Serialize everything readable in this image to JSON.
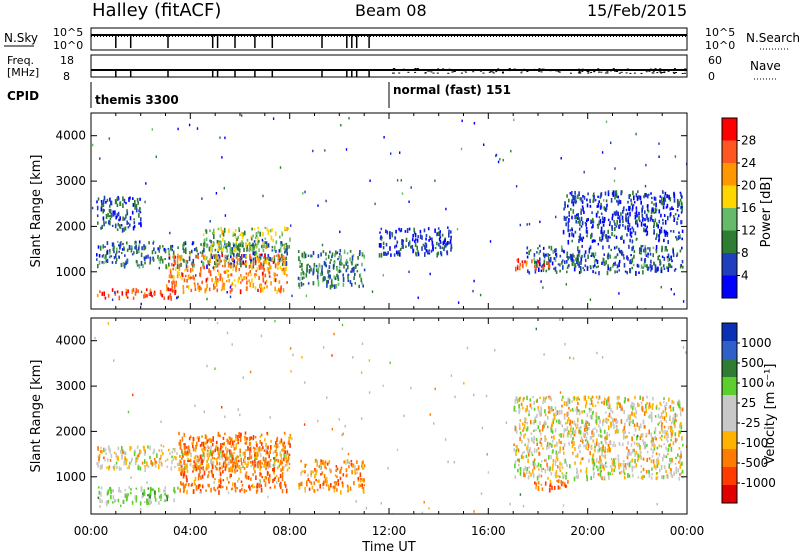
{
  "header": {
    "station": "Halley (fitACF)",
    "beam": "Beam 08",
    "date": "15/Feb/2015"
  },
  "summary": {
    "nsky_label": "N.Sky",
    "nsearch_label": "N.Search",
    "freq_label_1": "Freq.",
    "freq_label_2": "[MHz]",
    "nave_label": "Nave",
    "cpid_label": "CPID",
    "left_ticks_top": [
      "10^5",
      "10^0"
    ],
    "right_ticks_top": [
      "10^5",
      "10^0"
    ],
    "left_ticks_freq": [
      "18",
      "8"
    ],
    "right_ticks_nave": [
      "60",
      "0"
    ],
    "cpid_segments": [
      {
        "label": "themis 3300",
        "start_hour": 0
      },
      {
        "label": "normal (fast) 151",
        "start_hour": 12
      }
    ],
    "dips_hours": [
      1.0,
      1.6,
      3.1,
      4.9,
      5.1,
      5.8,
      6.6,
      7.3,
      9.3,
      10.3,
      10.5,
      10.7,
      11.2
    ]
  },
  "colors": {
    "power_scale": [
      "#0000ff",
      "#1f3fbf",
      "#2e7d32",
      "#66bb6a",
      "#ffd600",
      "#ff9800",
      "#ff5722",
      "#ff0000"
    ],
    "velocity_scale": [
      "#0b2fb5",
      "#2f5fc9",
      "#2e7d32",
      "#5ccf2e",
      "#c8c8c8",
      "#c8c8c8",
      "#ffb300",
      "#ff7a00",
      "#ff3b00",
      "#e00000"
    ],
    "ground_scatter": "#b8b8b8"
  },
  "chart_data": [
    {
      "type": "heatmap",
      "title": "Power",
      "xlabel": "Time UT",
      "ylabel": "Slant Range [km]",
      "xlim": [
        0,
        24
      ],
      "ylim": [
        180,
        4500
      ],
      "x_tick_labels": [
        "00:00",
        "04:00",
        "08:00",
        "12:00",
        "16:00",
        "20:00",
        "00:00"
      ],
      "y_ticks": [
        1000,
        2000,
        3000,
        4000
      ],
      "colorbar_label": "Power [dB]",
      "colorbar_ticks": [
        "4",
        "8",
        "12",
        "16",
        "20",
        "24",
        "28"
      ],
      "colorbar_range": [
        0,
        30
      ],
      "bands": [
        {
          "x0": 0.2,
          "x1": 8.0,
          "y0": 1150,
          "y1": 1700,
          "value": 8
        },
        {
          "x0": 0.2,
          "x1": 2.0,
          "y0": 1950,
          "y1": 2700,
          "value": 6
        },
        {
          "x0": 3.0,
          "x1": 7.9,
          "y0": 600,
          "y1": 1400,
          "value": 22
        },
        {
          "x0": 0.2,
          "x1": 3.5,
          "y0": 450,
          "y1": 650,
          "value": 26
        },
        {
          "x0": 4.5,
          "x1": 8.0,
          "y0": 1500,
          "y1": 2000,
          "value": 14
        },
        {
          "x0": 8.3,
          "x1": 11.0,
          "y0": 700,
          "y1": 1500,
          "value": 9
        },
        {
          "x0": 11.5,
          "x1": 14.5,
          "y0": 1400,
          "y1": 2000,
          "value": 5
        },
        {
          "x0": 17.5,
          "x1": 23.8,
          "y0": 1000,
          "y1": 1600,
          "value": 7
        },
        {
          "x0": 19.0,
          "x1": 23.8,
          "y0": 1700,
          "y1": 2800,
          "value": 5
        },
        {
          "x0": 17.0,
          "x1": 18.5,
          "y0": 1100,
          "y1": 1300,
          "value": 24
        }
      ]
    },
    {
      "type": "heatmap",
      "title": "Velocity",
      "xlabel": "Time UT",
      "ylabel": "Slant Range [km]",
      "xlim": [
        0,
        24
      ],
      "ylim": [
        180,
        4500
      ],
      "x_tick_labels": [
        "00:00",
        "04:00",
        "08:00",
        "12:00",
        "16:00",
        "20:00",
        "00:00"
      ],
      "y_ticks": [
        1000,
        2000,
        3000,
        4000
      ],
      "colorbar_label": "Velocity [m s⁻¹]",
      "colorbar_ticks": [
        "1000",
        "500",
        "100",
        "25",
        "-25",
        "-100",
        "-500",
        "-1000"
      ],
      "bands": [
        {
          "x0": 0.2,
          "x1": 8.0,
          "y0": 1200,
          "y1": 1700,
          "value": 0
        },
        {
          "x0": 0.2,
          "x1": 3.5,
          "y0": 450,
          "y1": 800,
          "value": 150
        },
        {
          "x0": 3.5,
          "x1": 8.0,
          "y0": 700,
          "y1": 2000,
          "value": -200
        },
        {
          "x0": 8.3,
          "x1": 11.0,
          "y0": 700,
          "y1": 1400,
          "value": -150
        },
        {
          "x0": 17.0,
          "x1": 23.8,
          "y0": 1000,
          "y1": 2800,
          "value": 0
        },
        {
          "x0": 17.8,
          "x1": 19.2,
          "y0": 750,
          "y1": 1000,
          "value": -200
        }
      ]
    }
  ]
}
